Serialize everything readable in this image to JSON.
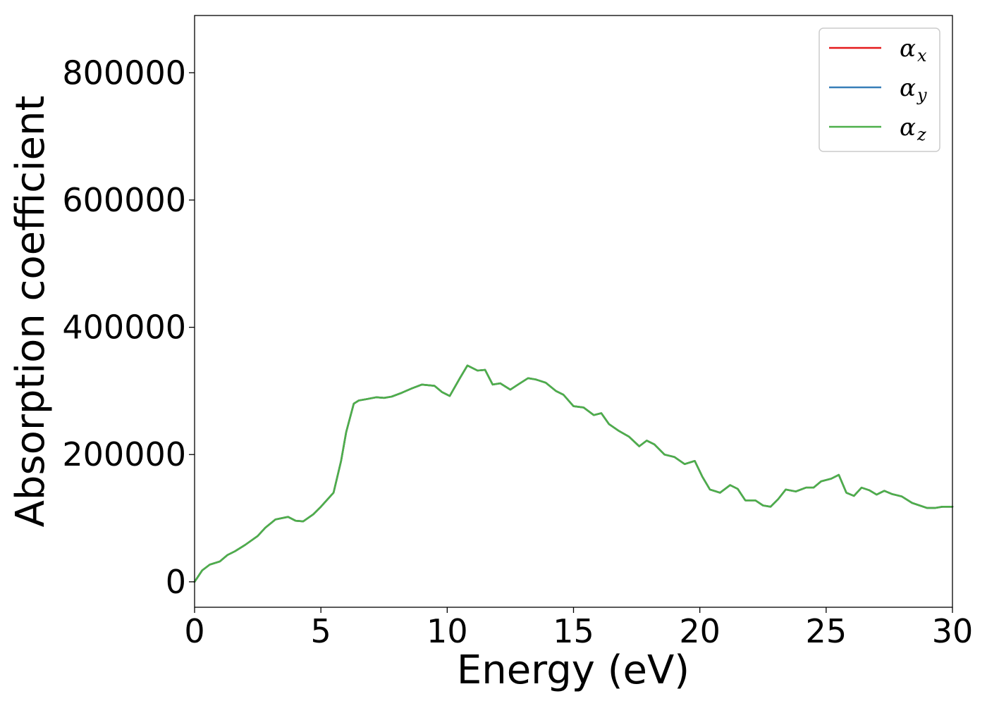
{
  "chart_data": {
    "type": "line",
    "xlabel": "Energy (eV)",
    "ylabel": "Absorption coefficient",
    "xlim": [
      0,
      30
    ],
    "ylim": [
      -40000,
      890000
    ],
    "xticks": [
      0,
      5,
      10,
      15,
      20,
      25,
      30
    ],
    "yticks": [
      0,
      200000,
      400000,
      600000,
      800000
    ],
    "grid": false,
    "legend_position": "top-right",
    "x": [
      0,
      0.3,
      0.6,
      1,
      1.3,
      1.6,
      2,
      2.5,
      2.8,
      3.2,
      3.7,
      4,
      4.3,
      4.7,
      5,
      5.5,
      5.8,
      6,
      6.3,
      6.5,
      6.8,
      7.2,
      7.5,
      7.8,
      8.2,
      8.6,
      9,
      9.5,
      9.8,
      10.1,
      10.5,
      10.8,
      11.2,
      11.5,
      11.8,
      12.1,
      12.5,
      12.8,
      13.2,
      13.5,
      13.9,
      14.3,
      14.6,
      15,
      15.4,
      15.8,
      16.1,
      16.4,
      16.8,
      17.2,
      17.6,
      17.9,
      18.2,
      18.6,
      19,
      19.4,
      19.8,
      20.1,
      20.4,
      20.8,
      21.2,
      21.5,
      21.8,
      22.2,
      22.5,
      22.8,
      23.1,
      23.4,
      23.8,
      24.2,
      24.5,
      24.8,
      25.2,
      25.5,
      25.8,
      26.1,
      26.4,
      26.7,
      27,
      27.3,
      27.6,
      28,
      28.4,
      28.7,
      29,
      29.3,
      29.6,
      30
    ],
    "series": [
      {
        "name": "α_x",
        "label_main": "α",
        "label_sub": "x",
        "color": "#e41a1c",
        "values": [
          0,
          18000,
          27000,
          32000,
          42000,
          48000,
          58000,
          72000,
          85000,
          98000,
          102000,
          96000,
          95000,
          106000,
          118000,
          140000,
          190000,
          235000,
          280000,
          285000,
          287000,
          290000,
          289000,
          291000,
          297000,
          304000,
          310000,
          308000,
          298000,
          292000,
          320000,
          340000,
          332000,
          333000,
          310000,
          312000,
          302000,
          310000,
          320000,
          318000,
          313000,
          300000,
          294000,
          276000,
          274000,
          262000,
          265000,
          248000,
          237000,
          228000,
          213000,
          222000,
          216000,
          200000,
          196000,
          185000,
          190000,
          165000,
          145000,
          140000,
          152000,
          146000,
          128000,
          128000,
          120000,
          118000,
          130000,
          145000,
          142000,
          148000,
          148000,
          158000,
          162000,
          168000,
          140000,
          135000,
          148000,
          144000,
          137000,
          143000,
          138000,
          134000,
          124000,
          120000,
          116000,
          116000,
          118000,
          118000
        ]
      },
      {
        "name": "α_y",
        "label_main": "α",
        "label_sub": "y",
        "color": "#377eb8",
        "values": [
          0,
          18000,
          27000,
          32000,
          42000,
          48000,
          58000,
          72000,
          85000,
          98000,
          102000,
          96000,
          95000,
          106000,
          118000,
          140000,
          190000,
          235000,
          280000,
          285000,
          287000,
          290000,
          289000,
          291000,
          297000,
          304000,
          310000,
          308000,
          298000,
          292000,
          320000,
          340000,
          332000,
          333000,
          310000,
          312000,
          302000,
          310000,
          320000,
          318000,
          313000,
          300000,
          294000,
          276000,
          274000,
          262000,
          265000,
          248000,
          237000,
          228000,
          213000,
          222000,
          216000,
          200000,
          196000,
          185000,
          190000,
          165000,
          145000,
          140000,
          152000,
          146000,
          128000,
          128000,
          120000,
          118000,
          130000,
          145000,
          142000,
          148000,
          148000,
          158000,
          162000,
          168000,
          140000,
          135000,
          148000,
          144000,
          137000,
          143000,
          138000,
          134000,
          124000,
          120000,
          116000,
          116000,
          118000,
          118000
        ]
      },
      {
        "name": "α_z",
        "label_main": "α",
        "label_sub": "z",
        "color": "#4daf4a",
        "values": [
          0,
          18000,
          27000,
          32000,
          42000,
          48000,
          58000,
          72000,
          85000,
          98000,
          102000,
          96000,
          95000,
          106000,
          118000,
          140000,
          190000,
          235000,
          280000,
          285000,
          287000,
          290000,
          289000,
          291000,
          297000,
          304000,
          310000,
          308000,
          298000,
          292000,
          320000,
          340000,
          332000,
          333000,
          310000,
          312000,
          302000,
          310000,
          320000,
          318000,
          313000,
          300000,
          294000,
          276000,
          274000,
          262000,
          265000,
          248000,
          237000,
          228000,
          213000,
          222000,
          216000,
          200000,
          196000,
          185000,
          190000,
          165000,
          145000,
          140000,
          152000,
          146000,
          128000,
          128000,
          120000,
          118000,
          130000,
          145000,
          142000,
          148000,
          148000,
          158000,
          162000,
          168000,
          140000,
          135000,
          148000,
          144000,
          137000,
          143000,
          138000,
          134000,
          124000,
          120000,
          116000,
          116000,
          118000,
          118000
        ]
      }
    ]
  }
}
